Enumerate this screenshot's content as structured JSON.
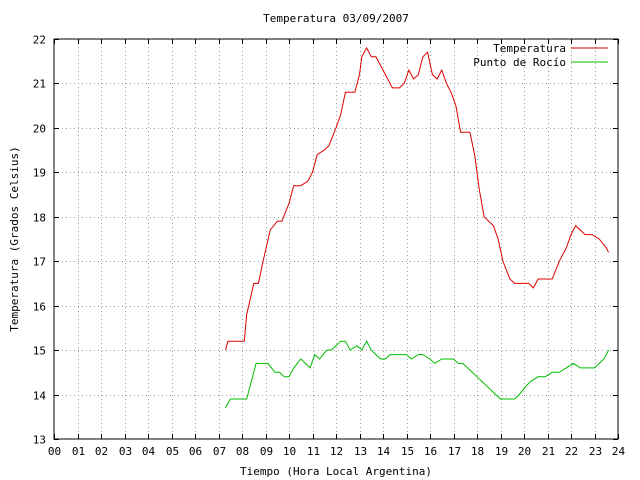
{
  "chart_data": {
    "type": "line",
    "title": "Temperatura 03/09/2007",
    "xlabel": "Tiempo (Hora Local Argentina)",
    "ylabel": "Temperatura (Grados Celsius)",
    "xlim": [
      0,
      24
    ],
    "ylim": [
      13,
      22
    ],
    "x_ticks": [
      "00",
      "01",
      "02",
      "03",
      "04",
      "05",
      "06",
      "07",
      "08",
      "09",
      "10",
      "11",
      "12",
      "13",
      "14",
      "15",
      "16",
      "17",
      "18",
      "19",
      "20",
      "21",
      "22",
      "23",
      "24"
    ],
    "y_ticks": [
      "13",
      "14",
      "15",
      "16",
      "17",
      "18",
      "19",
      "20",
      "21",
      "22"
    ],
    "grid": true,
    "legend_position": "top-right",
    "colors": {
      "temperatura": "#dd0000",
      "punto_de_rocio": "#00bb00"
    },
    "series": [
      {
        "name": "Temperatura",
        "x": [
          7.3,
          7.4,
          7.8,
          8.1,
          8.2,
          8.5,
          8.7,
          8.9,
          9.2,
          9.5,
          9.7,
          10.0,
          10.2,
          10.5,
          10.8,
          11.0,
          11.2,
          11.5,
          11.7,
          12.0,
          12.2,
          12.4,
          12.6,
          12.8,
          13.0,
          13.1,
          13.3,
          13.5,
          13.7,
          14.0,
          14.2,
          14.4,
          14.7,
          14.9,
          15.1,
          15.3,
          15.5,
          15.7,
          15.9,
          16.1,
          16.3,
          16.5,
          16.7,
          16.9,
          17.1,
          17.3,
          17.5,
          17.7,
          17.9,
          18.1,
          18.3,
          18.5,
          18.7,
          18.9,
          19.1,
          19.4,
          19.6,
          19.9,
          20.2,
          20.4,
          20.6,
          20.9,
          21.2,
          21.5,
          21.8,
          22.0,
          22.2,
          22.4,
          22.6,
          22.9,
          23.2,
          23.5,
          23.6
        ],
        "values": [
          15.0,
          15.2,
          15.2,
          15.2,
          15.8,
          16.5,
          16.5,
          17.0,
          17.7,
          17.9,
          17.9,
          18.3,
          18.7,
          18.7,
          18.8,
          19.0,
          19.4,
          19.5,
          19.6,
          20.0,
          20.3,
          20.8,
          20.8,
          20.8,
          21.2,
          21.6,
          21.8,
          21.6,
          21.6,
          21.3,
          21.1,
          20.9,
          20.9,
          21.0,
          21.3,
          21.1,
          21.2,
          21.6,
          21.7,
          21.2,
          21.1,
          21.3,
          21.0,
          20.8,
          20.5,
          19.9,
          19.9,
          19.9,
          19.4,
          18.6,
          18.0,
          17.9,
          17.8,
          17.5,
          17.0,
          16.6,
          16.5,
          16.5,
          16.5,
          16.4,
          16.6,
          16.6,
          16.6,
          17.0,
          17.3,
          17.6,
          17.8,
          17.7,
          17.6,
          17.6,
          17.5,
          17.3,
          17.2
        ]
      },
      {
        "name": "Punto de Rocío",
        "x": [
          7.3,
          7.5,
          7.8,
          8.2,
          8.4,
          8.6,
          8.9,
          9.1,
          9.4,
          9.6,
          9.8,
          10.0,
          10.2,
          10.5,
          10.7,
          10.9,
          11.1,
          11.3,
          11.6,
          11.8,
          12.0,
          12.2,
          12.4,
          12.6,
          12.9,
          13.1,
          13.3,
          13.5,
          13.7,
          13.9,
          14.1,
          14.3,
          14.5,
          14.8,
          15.0,
          15.2,
          15.5,
          15.7,
          16.0,
          16.2,
          16.5,
          16.7,
          17.0,
          17.2,
          17.4,
          17.6,
          17.8,
          18.0,
          18.2,
          18.4,
          18.6,
          18.8,
          19.0,
          19.2,
          19.4,
          19.6,
          19.8,
          20.1,
          20.3,
          20.6,
          20.9,
          21.2,
          21.5,
          21.8,
          22.1,
          22.4,
          22.7,
          23.0,
          23.2,
          23.4,
          23.6
        ],
        "values": [
          13.7,
          13.9,
          13.9,
          13.9,
          14.3,
          14.7,
          14.7,
          14.7,
          14.5,
          14.5,
          14.4,
          14.4,
          14.6,
          14.8,
          14.7,
          14.6,
          14.9,
          14.8,
          15.0,
          15.0,
          15.1,
          15.2,
          15.2,
          15.0,
          15.1,
          15.0,
          15.2,
          15.0,
          14.9,
          14.8,
          14.8,
          14.9,
          14.9,
          14.9,
          14.9,
          14.8,
          14.9,
          14.9,
          14.8,
          14.7,
          14.8,
          14.8,
          14.8,
          14.7,
          14.7,
          14.6,
          14.5,
          14.4,
          14.3,
          14.2,
          14.1,
          14.0,
          13.9,
          13.9,
          13.9,
          13.9,
          14.0,
          14.2,
          14.3,
          14.4,
          14.4,
          14.5,
          14.5,
          14.6,
          14.7,
          14.6,
          14.6,
          14.6,
          14.7,
          14.8,
          15.0
        ]
      }
    ]
  }
}
